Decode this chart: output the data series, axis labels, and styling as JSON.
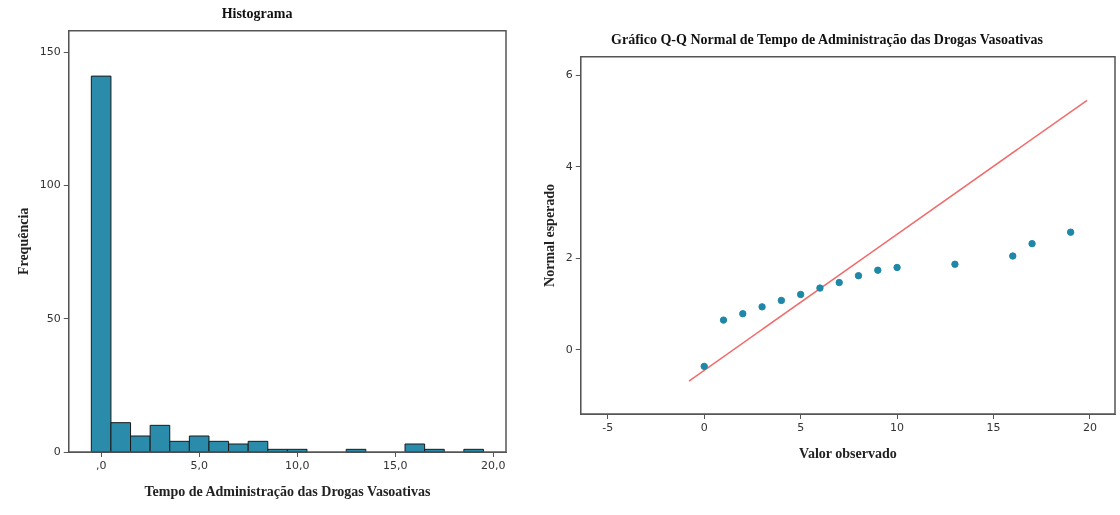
{
  "chart_data": [
    {
      "type": "histogram",
      "title": "Histograma",
      "xlabel": "Tempo de Administração das Drogas Vasoativas",
      "ylabel": "Frequência",
      "bins": [
        -0.5,
        0.5,
        1.5,
        2.5,
        3.5,
        4.5,
        5.5,
        6.5,
        7.5,
        8.5,
        9.5,
        10.5,
        11.5,
        12.5,
        13.5,
        14.5,
        15.5,
        16.5,
        17.5,
        18.5,
        19.5
      ],
      "values": [
        141,
        11,
        6,
        10,
        4,
        6,
        4,
        3,
        4,
        1,
        1,
        0,
        0,
        1,
        0,
        0,
        3,
        1,
        0,
        1
      ],
      "color": "#2a8bab",
      "xlim": [
        -1.65,
        20.65
      ],
      "xticks": [
        {
          "value": 0,
          "label": ",0"
        },
        {
          "value": 5,
          "label": "5,0"
        },
        {
          "value": 10,
          "label": "10,0"
        },
        {
          "value": 15,
          "label": "15,0"
        },
        {
          "value": 20,
          "label": "20,0"
        }
      ],
      "ylim": [
        0,
        158
      ],
      "yticks": [
        0,
        50,
        100,
        150
      ],
      "grid": false,
      "legend": false
    },
    {
      "type": "scatter",
      "title": "Gráfico Q-Q Normal de Tempo de Administração das Drogas Vasoativas",
      "xlabel": "Valor observado",
      "ylabel": "Normal esperado",
      "x": [
        0,
        1,
        2,
        3,
        4,
        5,
        6,
        7,
        8,
        9,
        10,
        13,
        16,
        17,
        19
      ],
      "series": [
        {
          "color": "#1f87a8",
          "values": [
            -0.36,
            0.65,
            0.79,
            0.94,
            1.08,
            1.21,
            1.35,
            1.47,
            1.62,
            1.74,
            1.8,
            1.87,
            2.05,
            2.32,
            2.57
          ]
        },
        {
          "type": "line",
          "marker": "none",
          "color": "#f26b6b",
          "x": [
            -0.79,
            19.85
          ],
          "values": [
            -0.68,
            5.45
          ]
        }
      ],
      "marker": "circle",
      "xlim": [
        -6.4,
        21.3
      ],
      "xticks": [
        -5,
        0,
        5,
        10,
        15,
        20
      ],
      "ylim": [
        -1.4,
        6.4
      ],
      "yticks": [
        0,
        2,
        4,
        6
      ],
      "grid": false,
      "legend": false
    }
  ]
}
